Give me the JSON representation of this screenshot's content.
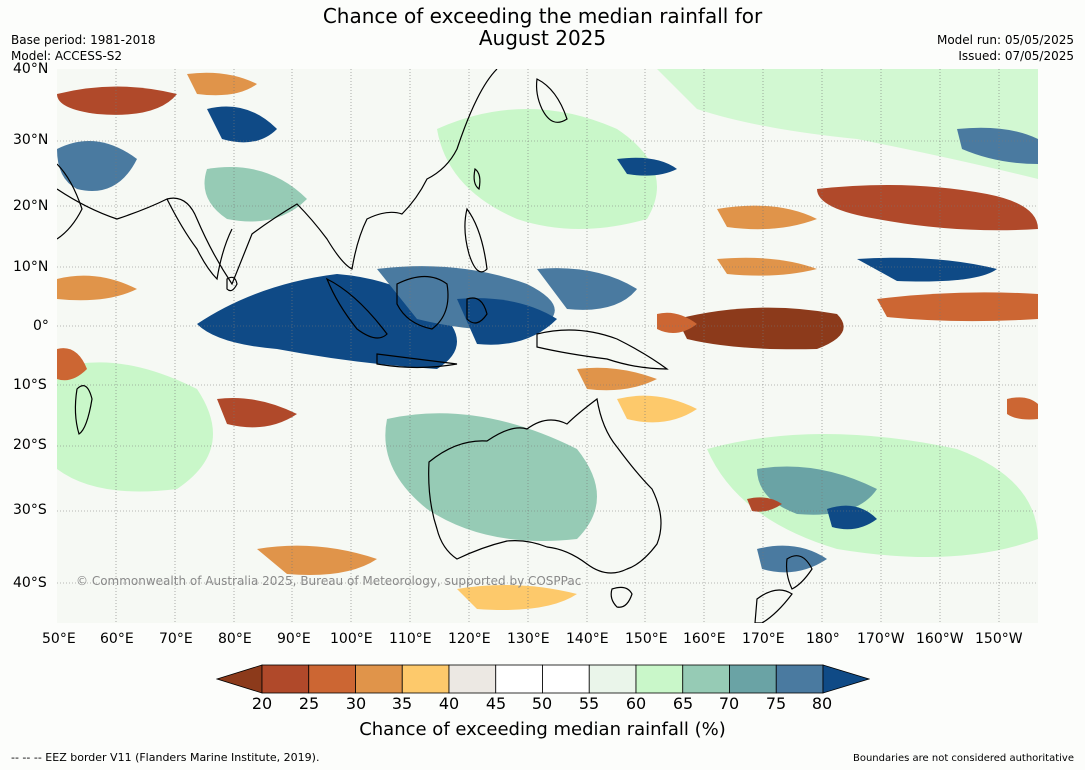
{
  "header": {
    "title_line1": "Chance of exceeding the median rainfall for",
    "title_line2": "August 2025",
    "base_period": "Base period: 1981-2018",
    "model": "Model: ACCESS-S2",
    "model_run": "Model run: 05/05/2025",
    "issued": "Issued: 07/05/2025"
  },
  "map": {
    "lat_labels": [
      "40°N",
      "30°N",
      "20°N",
      "10°N",
      "0°",
      "10°S",
      "20°S",
      "30°S",
      "40°S"
    ],
    "lon_labels": [
      "50°E",
      "60°E",
      "70°E",
      "80°E",
      "90°E",
      "100°E",
      "110°E",
      "120°E",
      "130°E",
      "140°E",
      "150°E",
      "160°E",
      "170°E",
      "180°",
      "170°W",
      "160°W",
      "150°W"
    ],
    "watermark": "© Commonwealth of Australia 2025, Bureau of Meteorology, supported by COSPPac"
  },
  "colorbar": {
    "title": "Chance of exceeding median rainfall (%)",
    "ticks": [
      "20",
      "25",
      "30",
      "35",
      "40",
      "45",
      "50",
      "55",
      "60",
      "65",
      "70",
      "75",
      "80"
    ],
    "colors": [
      "#8c3a1b",
      "#b0492a",
      "#cc6633",
      "#e0944a",
      "#fdc96b",
      "#ece8e3",
      "#ffffff",
      "#ffffff",
      "#eaf5ea",
      "#c9f7c9",
      "#96cbb5",
      "#6aa3a5",
      "#4a7aa0",
      "#0f4a86"
    ]
  },
  "footer": {
    "eez_note": "--  --  -- EEZ border V11 (Flanders Marine Institute, 2019).",
    "boundaries_note": "Boundaries are not considered authoritative"
  }
}
